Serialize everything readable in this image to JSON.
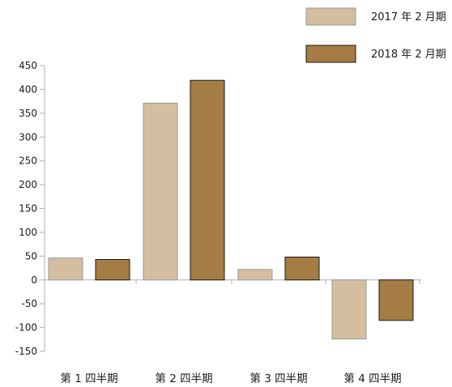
{
  "chart_data": {
    "type": "bar",
    "categories": [
      "第 1 四半期",
      "第 2 四半期",
      "第 3 四半期",
      "第 4 四半期"
    ],
    "series": [
      {
        "name": "2017 年 2 月期",
        "color": "#d3bf9f",
        "values": [
          46,
          371,
          22,
          -124
        ]
      },
      {
        "name": "2018 年 2 月期",
        "color": "#a47c44",
        "values": [
          43,
          419,
          48,
          -85
        ]
      }
    ],
    "yticks": [
      450,
      400,
      350,
      300,
      250,
      200,
      150,
      100,
      50,
      0,
      -50,
      -100,
      -150
    ],
    "ylim": [
      -150,
      450
    ],
    "xlabel": "",
    "ylabel": "",
    "title": "",
    "grid": false,
    "legend_position": "top-right"
  }
}
